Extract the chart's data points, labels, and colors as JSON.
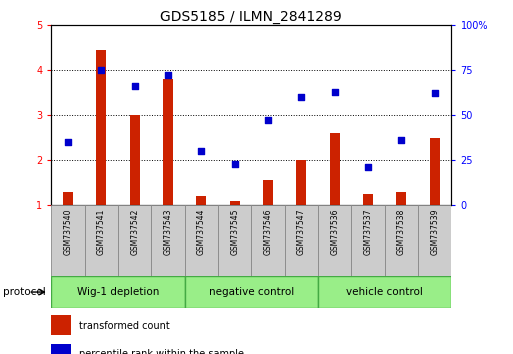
{
  "title": "GDS5185 / ILMN_2841289",
  "samples": [
    "GSM737540",
    "GSM737541",
    "GSM737542",
    "GSM737543",
    "GSM737544",
    "GSM737545",
    "GSM737546",
    "GSM737547",
    "GSM737536",
    "GSM737537",
    "GSM737538",
    "GSM737539"
  ],
  "transformed_count": [
    1.3,
    4.45,
    3.0,
    3.8,
    1.2,
    1.1,
    1.55,
    2.0,
    2.6,
    1.25,
    1.3,
    2.5
  ],
  "percentile_rank": [
    35,
    75,
    66,
    72,
    30,
    23,
    47,
    60,
    63,
    21,
    36,
    62
  ],
  "ylim_left": [
    1,
    5
  ],
  "ylim_right": [
    0,
    100
  ],
  "yticks_left": [
    1,
    2,
    3,
    4,
    5
  ],
  "yticks_right": [
    0,
    25,
    50,
    75,
    100
  ],
  "ytick_labels_right": [
    "0",
    "25",
    "50",
    "75",
    "100%"
  ],
  "bar_color": "#cc2200",
  "scatter_color": "#0000cc",
  "groups": [
    {
      "label": "Wig-1 depletion",
      "start": 0,
      "end": 3
    },
    {
      "label": "negative control",
      "start": 4,
      "end": 7
    },
    {
      "label": "vehicle control",
      "start": 8,
      "end": 11
    }
  ],
  "group_color": "#99ee88",
  "group_border_color": "#44aa44",
  "sample_box_color": "#cccccc",
  "sample_box_border": "#888888",
  "legend_red_label": "transformed count",
  "legend_blue_label": "percentile rank within the sample",
  "protocol_label": "protocol",
  "background_color": "#ffffff",
  "plot_bg_color": "#ffffff",
  "title_fontsize": 10,
  "tick_fontsize": 7,
  "sample_fontsize": 5.5,
  "group_fontsize": 7.5,
  "legend_fontsize": 7,
  "protocol_fontsize": 7.5
}
